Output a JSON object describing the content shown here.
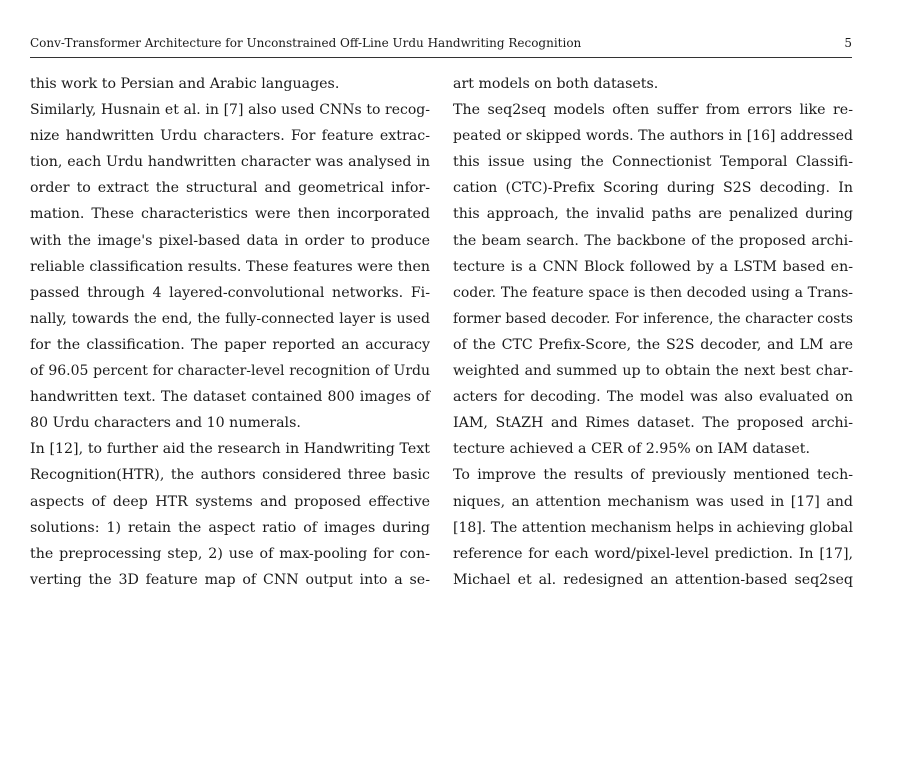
{
  "header": {
    "running_title": "Conv-Transformer Architecture for Unconstrained Off-Line Urdu Handwriting Recognition",
    "page_number": "5"
  },
  "left_column": [
    {
      "text": "this work to Persian and Arabic languages.",
      "justify": false
    },
    {
      "text": "Similarly, Husnain et al. in [7] also used CNNs to recog-",
      "justify": true
    },
    {
      "text": "nize handwritten Urdu characters. For feature extrac-",
      "justify": true
    },
    {
      "text": "tion, each Urdu handwritten character was analysed in",
      "justify": true
    },
    {
      "text": "order to extract the structural and geometrical infor-",
      "justify": true
    },
    {
      "text": "mation. These characteristics were then incorporated",
      "justify": true
    },
    {
      "text": "with the image's pixel-based data in order to produce",
      "justify": true
    },
    {
      "text": "reliable classification results. These features were then",
      "justify": true
    },
    {
      "text": "passed through 4 layered-convolutional networks. Fi-",
      "justify": true
    },
    {
      "text": "nally, towards the end, the fully-connected layer is used",
      "justify": true
    },
    {
      "text": "for the classification. The paper reported an accuracy",
      "justify": true
    },
    {
      "text": "of 96.05 percent for character-level recognition of Urdu",
      "justify": true
    },
    {
      "text": "handwritten text. The dataset contained 800 images of",
      "justify": true
    },
    {
      "text": "80 Urdu characters and 10 numerals.",
      "justify": false
    },
    {
      "text": "In [12], to further aid the research in Handwriting Text",
      "justify": true
    },
    {
      "text": "Recognition(HTR), the authors considered three basic",
      "justify": true
    },
    {
      "text": "aspects of deep HTR systems and proposed effective",
      "justify": true
    },
    {
      "text": "solutions: 1) retain the aspect ratio of images during",
      "justify": true
    },
    {
      "text": "the preprocessing step, 2) use of max-pooling for con-",
      "justify": true
    },
    {
      "text": "verting the 3D feature map of CNN output into a se-",
      "justify": true
    }
  ],
  "right_column": [
    {
      "text": "art models on both datasets.",
      "justify": false
    },
    {
      "text": "The seq2seq models often suffer from errors like re-",
      "justify": true
    },
    {
      "text": "peated or skipped words. The authors in [16] addressed",
      "justify": true
    },
    {
      "text": "this issue using the Connectionist Temporal Classifi-",
      "justify": true
    },
    {
      "text": "cation (CTC)-Prefix Scoring during S2S decoding. In",
      "justify": true
    },
    {
      "text": "this approach, the invalid paths are penalized during",
      "justify": true
    },
    {
      "text": "the beam search. The backbone of the proposed archi-",
      "justify": true
    },
    {
      "text": "tecture is a CNN Block followed by a LSTM based en-",
      "justify": true
    },
    {
      "text": "coder. The feature space is then decoded using a Trans-",
      "justify": true
    },
    {
      "text": "former based decoder. For inference, the character costs",
      "justify": true
    },
    {
      "text": "of the CTC Prefix-Score, the S2S decoder, and LM are",
      "justify": true
    },
    {
      "text": "weighted and summed up to obtain the next best char-",
      "justify": true
    },
    {
      "text": "acters for decoding. The model was also evaluated on",
      "justify": true
    },
    {
      "text": "IAM, StAZH and Rimes dataset. The proposed archi-",
      "justify": true
    },
    {
      "text": "tecture achieved a CER of 2.95% on IAM dataset.",
      "justify": false
    },
    {
      "text": "To improve the results of previously mentioned tech-",
      "justify": true
    },
    {
      "text": "niques, an attention mechanism was used in [17] and",
      "justify": true
    },
    {
      "text": "[18]. The attention mechanism helps in achieving global",
      "justify": true
    },
    {
      "text": "reference for each word/pixel-level prediction. In [17],",
      "justify": true
    },
    {
      "text": "Michael et al. redesigned an attention-based seq2seq",
      "justify": true
    }
  ]
}
